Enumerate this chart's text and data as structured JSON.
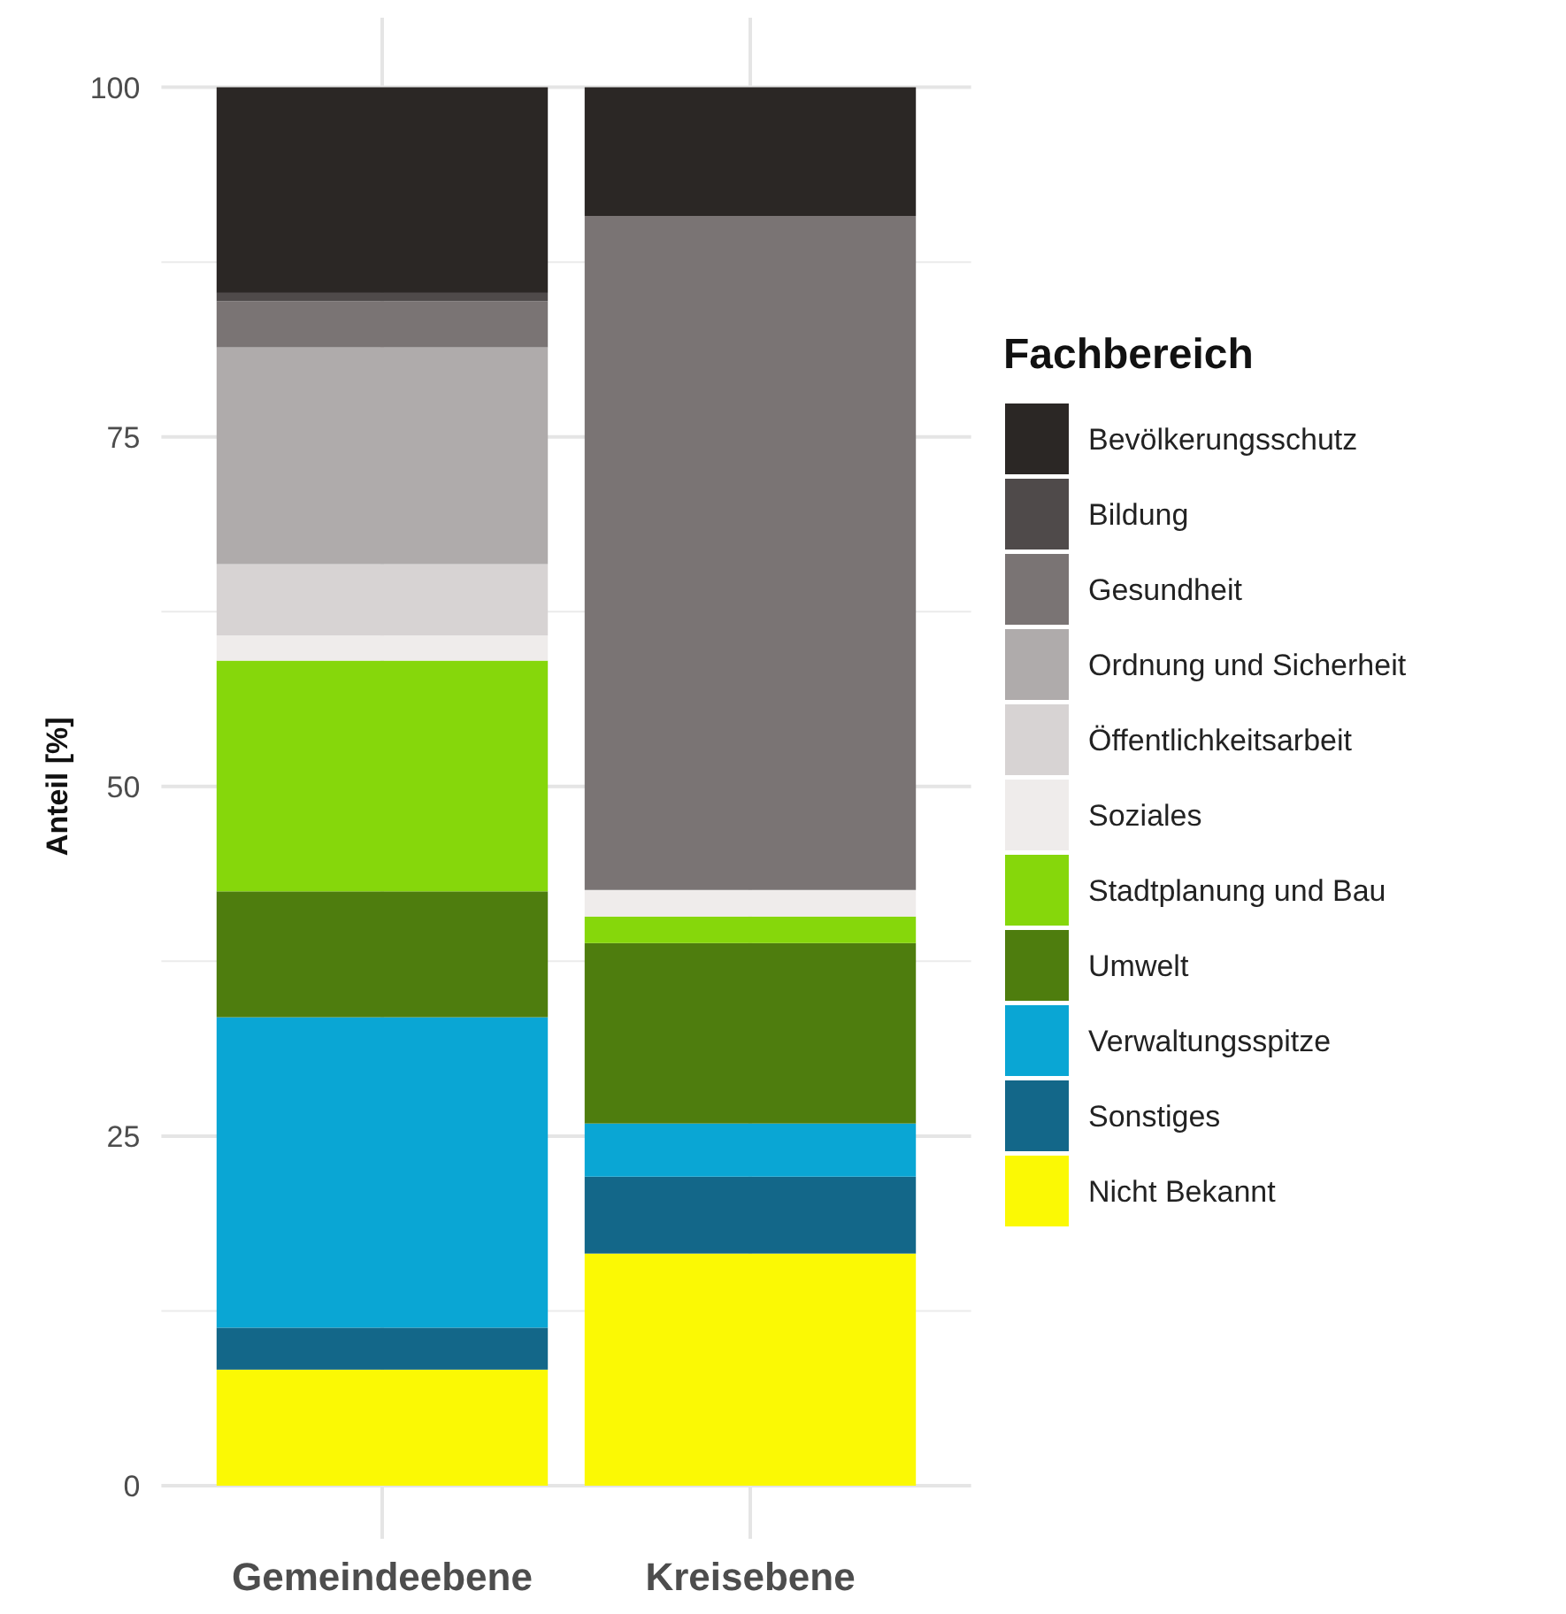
{
  "chart_data": {
    "type": "bar",
    "ylabel": "Anteil [%]",
    "legend_title": "Fachbereich",
    "categories": [
      "Gemeindeebene",
      "Kreisebene"
    ],
    "stacked": true,
    "ylim": [
      0,
      100
    ],
    "yticks": [
      0,
      25,
      50,
      75,
      100
    ],
    "grid": true,
    "legend": "right",
    "series": [
      {
        "name": "Nicht Bekannt",
        "color": "#fbf904",
        "values": [
          8.3,
          16.6
        ]
      },
      {
        "name": "Sonstiges",
        "color": "#136789",
        "values": [
          3.0,
          5.5
        ]
      },
      {
        "name": "Verwaltungsspitze",
        "color": "#0aa6d4",
        "values": [
          22.2,
          3.8
        ]
      },
      {
        "name": "Umwelt",
        "color": "#4e7d0e",
        "values": [
          9.0,
          12.9
        ]
      },
      {
        "name": "Stadtplanung und Bau",
        "color": "#86d70b",
        "values": [
          16.5,
          1.9
        ]
      },
      {
        "name": "Soziales",
        "color": "#efeceb",
        "values": [
          1.8,
          1.9
        ]
      },
      {
        "name": "Öffentlichkeitsarbeit",
        "color": "#d7d3d3",
        "values": [
          5.1,
          0
        ]
      },
      {
        "name": "Ordnung und Sicherheit",
        "color": "#afabab",
        "values": [
          15.5,
          0
        ]
      },
      {
        "name": "Gesundheit",
        "color": "#7a7474",
        "values": [
          3.3,
          48.2
        ]
      },
      {
        "name": "Bildung",
        "color": "#4f4a4a",
        "values": [
          0.6,
          0
        ]
      },
      {
        "name": "Bevölkerungsschutz",
        "color": "#2b2725",
        "values": [
          14.7,
          9.2
        ]
      }
    ]
  }
}
